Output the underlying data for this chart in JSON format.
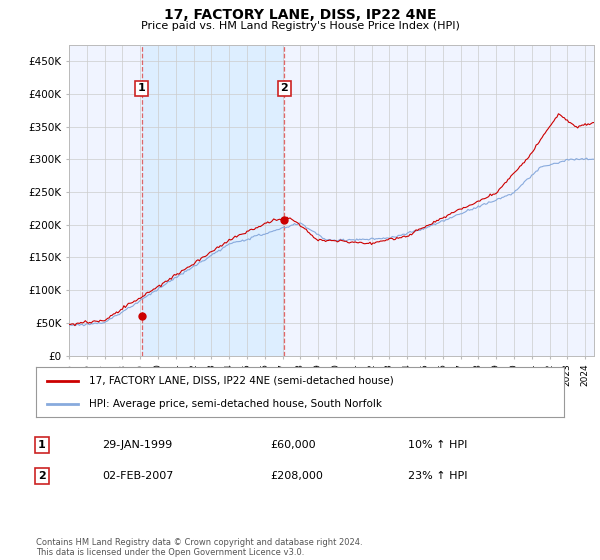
{
  "title": "17, FACTORY LANE, DISS, IP22 4NE",
  "subtitle": "Price paid vs. HM Land Registry's House Price Index (HPI)",
  "ylabel_ticks": [
    "£0",
    "£50K",
    "£100K",
    "£150K",
    "£200K",
    "£250K",
    "£300K",
    "£350K",
    "£400K",
    "£450K"
  ],
  "ytick_values": [
    0,
    50000,
    100000,
    150000,
    200000,
    250000,
    300000,
    350000,
    400000,
    450000
  ],
  "ylim": [
    0,
    475000
  ],
  "xlim_start": 1995.0,
  "xlim_end": 2024.5,
  "sale1_year": 1999.08,
  "sale1_price": 60000,
  "sale2_year": 2007.09,
  "sale2_price": 208000,
  "legend_label_red": "17, FACTORY LANE, DISS, IP22 4NE (semi-detached house)",
  "legend_label_blue": "HPI: Average price, semi-detached house, South Norfolk",
  "annotation1_date": "29-JAN-1999",
  "annotation1_price": "£60,000",
  "annotation1_hpi": "10% ↑ HPI",
  "annotation2_date": "02-FEB-2007",
  "annotation2_price": "£208,000",
  "annotation2_hpi": "23% ↑ HPI",
  "footer": "Contains HM Land Registry data © Crown copyright and database right 2024.\nThis data is licensed under the Open Government Licence v3.0.",
  "line_color_red": "#cc0000",
  "line_color_blue": "#88aadd",
  "vline_color": "#dd4444",
  "highlight_color": "#ddeeff",
  "plot_bg_color": "#f0f4ff",
  "grid_color": "#cccccc",
  "background_color": "#ffffff"
}
